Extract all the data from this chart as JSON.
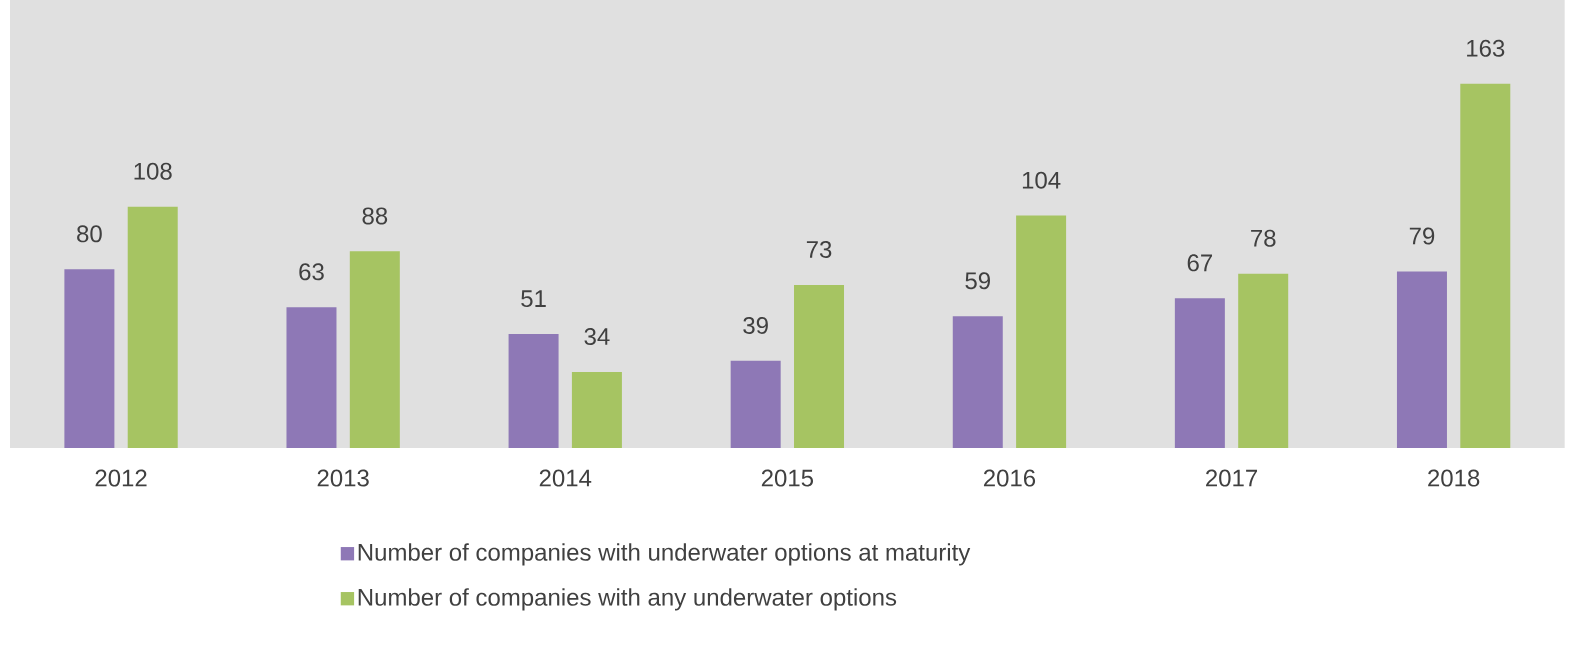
{
  "chart_data": {
    "type": "bar",
    "categories": [
      "2012",
      "2013",
      "2014",
      "2015",
      "2016",
      "2017",
      "2018"
    ],
    "series": [
      {
        "name": "Number of companies with underwater options at maturity",
        "color": "#8e78b6",
        "values": [
          80,
          63,
          51,
          39,
          59,
          67,
          79
        ]
      },
      {
        "name": "Number of companies with any underwater options",
        "color": "#a6c462",
        "values": [
          108,
          88,
          34,
          73,
          104,
          78,
          163
        ]
      }
    ],
    "data_labels": true,
    "legend": "bottom"
  }
}
